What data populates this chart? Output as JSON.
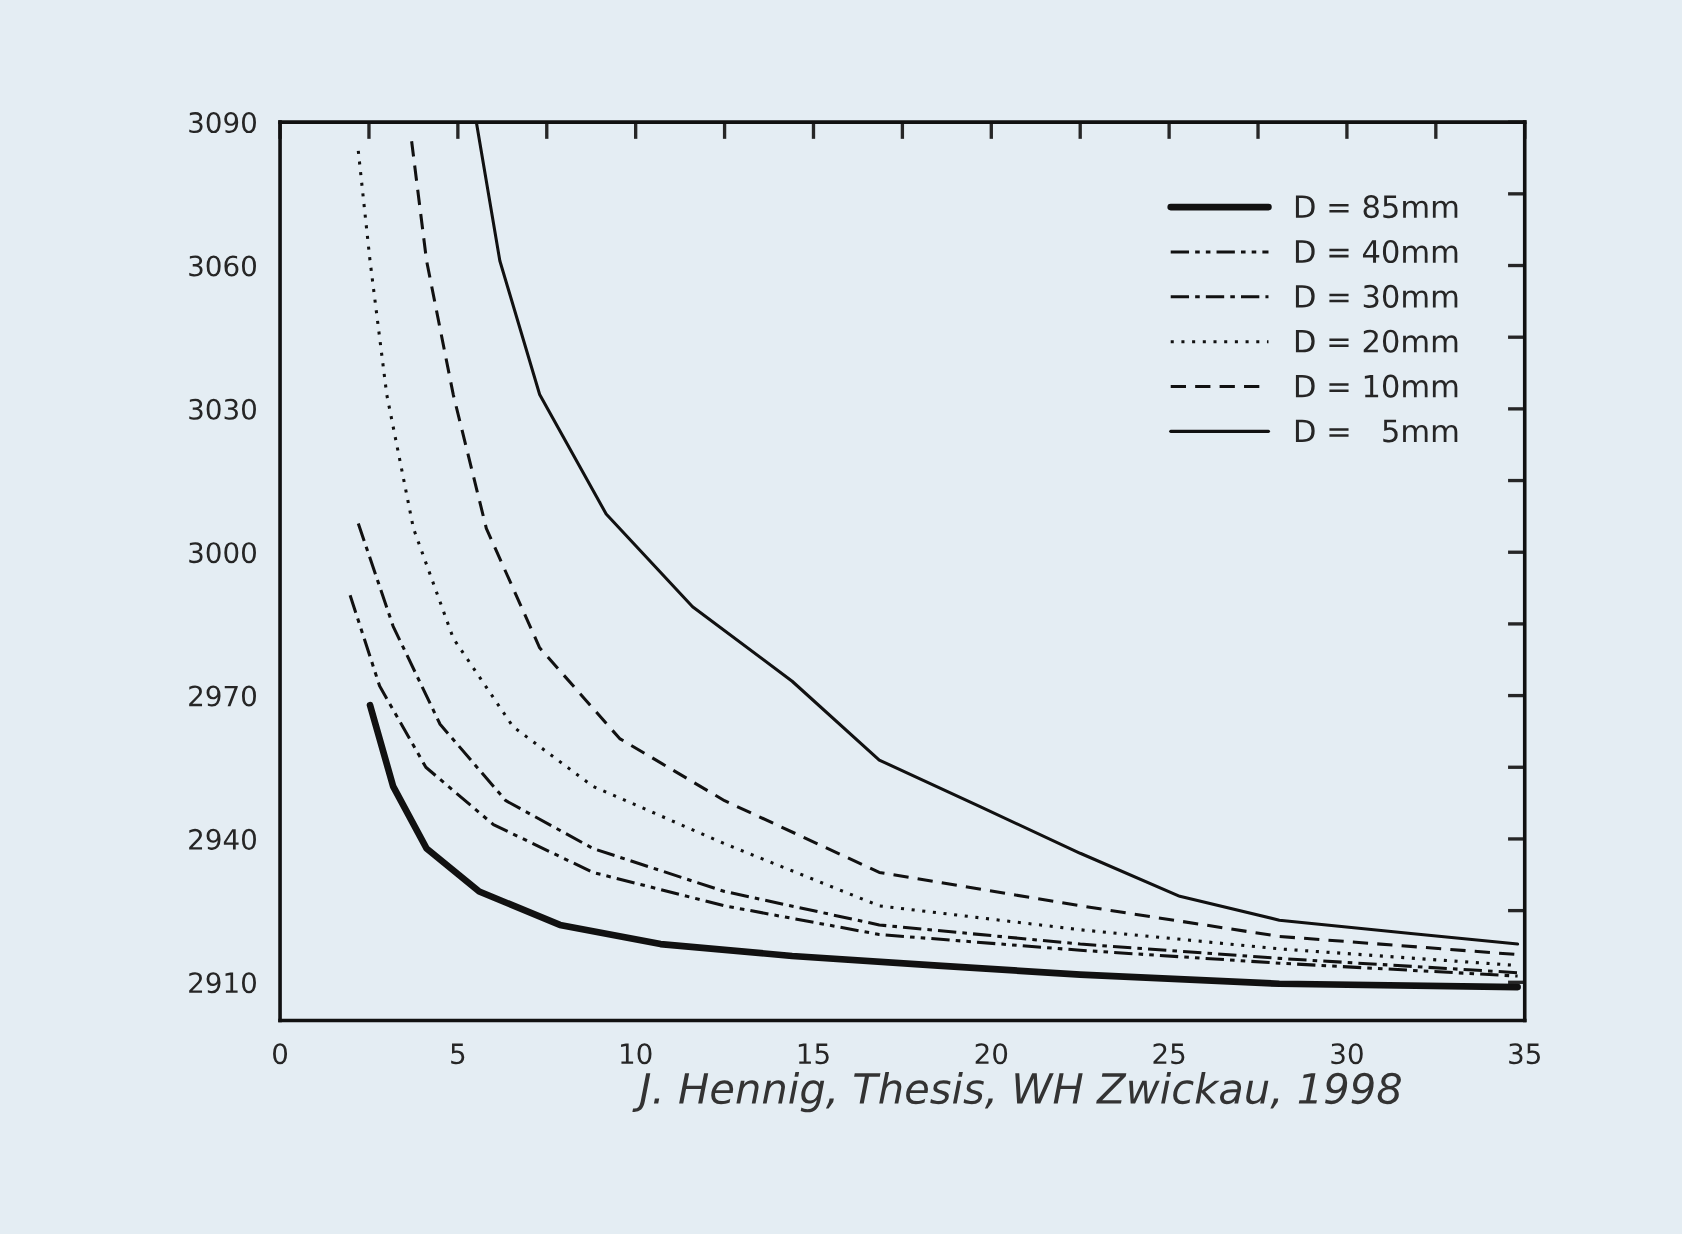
{
  "chart_data": {
    "type": "line",
    "xlim": [
      0,
      35
    ],
    "ylim": [
      2902,
      3090
    ],
    "xticks": [
      0,
      {
        "value": 2.5,
        "label": null
      },
      5,
      {
        "value": 7.5,
        "label": null
      },
      10,
      {
        "value": 12.5,
        "label": null
      },
      15,
      {
        "value": 17.5,
        "label": null
      },
      20,
      {
        "value": 22.5,
        "label": null
      },
      25,
      {
        "value": 27.5,
        "label": null
      },
      30,
      {
        "value": 32.5,
        "label": null
      },
      35
    ],
    "yticks": [
      2910,
      {
        "value": 2925,
        "label": null
      },
      2940,
      {
        "value": 2955,
        "label": null
      },
      2970,
      {
        "value": 2985,
        "label": null
      },
      3000,
      {
        "value": 3015,
        "label": null
      },
      3030,
      {
        "value": 3045,
        "label": null
      },
      3060,
      {
        "value": 3075,
        "label": null
      },
      3090
    ],
    "grid": false,
    "legend": "top right",
    "marker": "none",
    "annotations": [
      "J. Hennig, Thesis, WH Zwickau, 1998"
    ],
    "series": [
      {
        "name": "D = 85mm",
        "color": "#111111",
        "line_style": "solid",
        "x": [
          2.53,
          3.18,
          4.12,
          5.6,
          7.87,
          10.7,
          14.4,
          18.5,
          22.5,
          28.1,
          34.8
        ],
        "values": [
          2968,
          2951,
          2938,
          2929,
          2922,
          2918,
          2915.5,
          2913.5,
          2911.6,
          2909.7,
          2909
        ]
      },
      {
        "name": "D = 40mm",
        "color": "#111111",
        "line_style": "dashdotdot",
        "x": [
          1.97,
          2.8,
          4.1,
          6.0,
          8.8,
          12.5,
          16.85,
          22.5,
          28.1,
          34.8
        ],
        "values": [
          2991,
          2972,
          2955,
          2943,
          2933,
          2926,
          2920,
          2916.7,
          2914,
          2911.3
        ]
      },
      {
        "name": "D = 30mm",
        "color": "#111111",
        "line_style": "dashdot",
        "x": [
          2.2,
          3.18,
          4.5,
          6.35,
          8.8,
          12.5,
          16.85,
          22.5,
          28.1,
          34.8
        ],
        "values": [
          3006,
          2984.5,
          2964,
          2948,
          2938,
          2929,
          2922,
          2918,
          2915,
          2912
        ]
      },
      {
        "name": "D = 20mm",
        "color": "#111111",
        "line_style": "dotted",
        "x": [
          2.2,
          2.53,
          3.0,
          3.75,
          4.87,
          6.55,
          8.8,
          12.5,
          16.85,
          22.5,
          28.1,
          34.8
        ],
        "values": [
          3084,
          3061,
          3033,
          3005,
          2982,
          2963.5,
          2951,
          2939,
          2926,
          2921,
          2917,
          2913.5
        ]
      },
      {
        "name": "D = 10mm",
        "color": "#111111",
        "line_style": "dashed",
        "x": [
          3.7,
          4.12,
          4.87,
          5.8,
          7.3,
          9.55,
          12.5,
          16.85,
          22.5,
          28.1,
          34.8
        ],
        "values": [
          3086,
          3061,
          3033,
          3005,
          2980,
          2961,
          2948,
          2933,
          2926,
          2919.6,
          2915.8
        ]
      },
      {
        "name": "D =   5mm",
        "color": "#111111",
        "line_style": "solid",
        "x": [
          5.52,
          6.18,
          7.3,
          9.17,
          11.6,
          14.4,
          16.85,
          19.7,
          22.5,
          25.3,
          28.1,
          31.8,
          34.8
        ],
        "values": [
          3090,
          3061,
          3033,
          3008,
          2988.6,
          2973,
          2956.5,
          2946.7,
          2937,
          2928,
          2923,
          2920.2,
          2918
        ]
      }
    ]
  }
}
